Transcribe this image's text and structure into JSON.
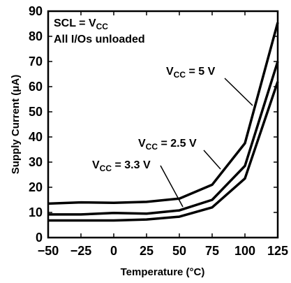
{
  "chart_data": {
    "type": "line",
    "xlabel": "Temperature (°C)",
    "ylabel": "Supply Current (μA)",
    "xlim": [
      -50,
      125
    ],
    "ylim": [
      0,
      90
    ],
    "x_ticks": [
      "−50",
      "−25",
      "0",
      "25",
      "50",
      "75",
      "100",
      "125"
    ],
    "y_ticks": [
      "0",
      "10",
      "20",
      "30",
      "40",
      "50",
      "60",
      "70",
      "80",
      "90"
    ],
    "x": [
      -50,
      -25,
      0,
      25,
      50,
      75,
      100,
      125
    ],
    "series": [
      {
        "values": [
          13.5,
          14,
          13.8,
          14.2,
          15.5,
          21,
          37.5,
          85.5
        ]
      },
      {
        "values": [
          9.2,
          9.2,
          9.8,
          9.5,
          10.8,
          15,
          28.5,
          70
        ]
      },
      {
        "values": [
          6.8,
          6.8,
          6.8,
          7.2,
          8.3,
          12,
          23.5,
          62
        ]
      }
    ],
    "grid": false,
    "legend": {
      "line1": {
        "main": "SCL = V",
        "sub": "CC"
      },
      "line2": "All I/Os unloaded"
    },
    "annotations": [
      {
        "main": "V",
        "sub": "CC",
        "rest": " = 5 V",
        "series": 0
      },
      {
        "main": "V",
        "sub": "CC",
        "rest": " = 2.5 V",
        "series": 1
      },
      {
        "main": "V",
        "sub": "CC",
        "rest": " = 3.3 V",
        "series": 2
      }
    ]
  }
}
